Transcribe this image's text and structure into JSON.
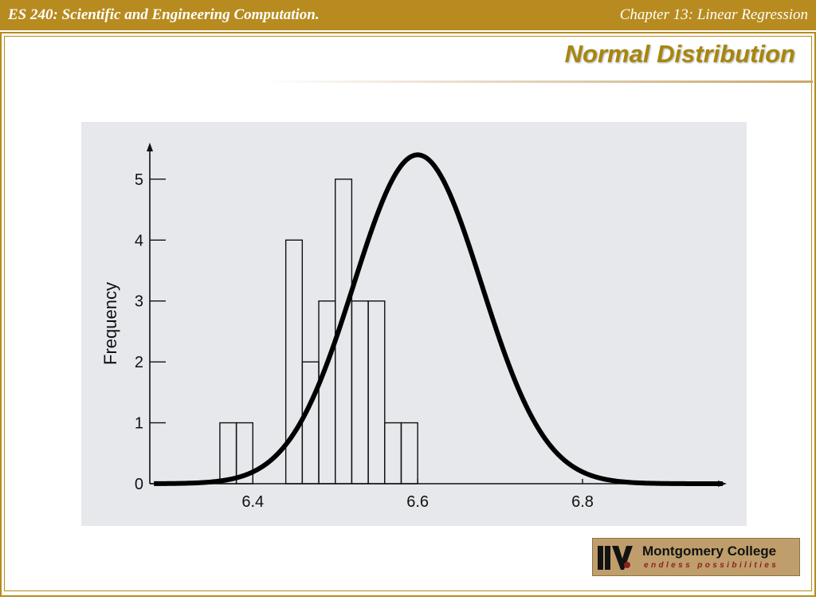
{
  "header": {
    "course": "ES 240: Scientific and Engineering Computation.",
    "chapter": "Chapter 13: Linear Regression"
  },
  "slide": {
    "title": "Normal Distribution"
  },
  "colors": {
    "header_bar": "#b78b1f",
    "title_text": "#a7860c",
    "plot_background": "#e6e8eb"
  },
  "chart_data": {
    "type": "bar",
    "title": "",
    "xlabel": "",
    "ylabel": "Frequency",
    "xlim": [
      6.275,
      6.975
    ],
    "ylim": [
      0,
      5.6
    ],
    "xticks": [
      6.4,
      6.6,
      6.8
    ],
    "xtick_labels": [
      "6.4",
      "6.6",
      "6.8"
    ],
    "yticks": [
      0,
      1,
      2,
      3,
      4,
      5
    ],
    "ytick_labels": [
      "0",
      "1",
      "2",
      "3",
      "4",
      "5"
    ],
    "bin_width": 0.02,
    "bins": [
      {
        "start": 6.36,
        "end": 6.38,
        "count": 1
      },
      {
        "start": 6.38,
        "end": 6.4,
        "count": 1
      },
      {
        "start": 6.44,
        "end": 6.46,
        "count": 4
      },
      {
        "start": 6.46,
        "end": 6.48,
        "count": 2
      },
      {
        "start": 6.48,
        "end": 6.5,
        "count": 3
      },
      {
        "start": 6.5,
        "end": 6.52,
        "count": 5
      },
      {
        "start": 6.52,
        "end": 6.54,
        "count": 3
      },
      {
        "start": 6.54,
        "end": 6.56,
        "count": 3
      },
      {
        "start": 6.56,
        "end": 6.58,
        "count": 1
      },
      {
        "start": 6.58,
        "end": 6.6,
        "count": 1
      }
    ],
    "curve": {
      "kind": "normal",
      "mean": 6.6,
      "peak": 5.4,
      "std": 0.0775,
      "x_range": [
        6.28,
        6.97
      ]
    },
    "grid": false,
    "legend": "none"
  },
  "logo": {
    "name": "Montgomery College",
    "tagline": "endless possibilities",
    "icon": "montgomery-college-mark"
  }
}
